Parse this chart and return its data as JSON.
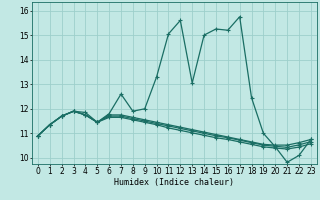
{
  "xlabel": "Humidex (Indice chaleur)",
  "ylabel": "",
  "bg_color": "#c2e8e4",
  "grid_color": "#9ecfcb",
  "line_color": "#1a6e64",
  "xlim": [
    -0.5,
    23.5
  ],
  "ylim": [
    9.75,
    16.35
  ],
  "xticks": [
    0,
    1,
    2,
    3,
    4,
    5,
    6,
    7,
    8,
    9,
    10,
    11,
    12,
    13,
    14,
    15,
    16,
    17,
    18,
    19,
    20,
    21,
    22,
    23
  ],
  "yticks": [
    10,
    11,
    12,
    13,
    14,
    15,
    16
  ],
  "series": [
    [
      10.9,
      11.35,
      11.7,
      11.9,
      11.85,
      11.45,
      11.8,
      12.6,
      11.9,
      12.0,
      13.3,
      15.05,
      15.6,
      13.05,
      15.0,
      15.25,
      15.2,
      15.75,
      12.45,
      11.0,
      10.45,
      9.82,
      10.1,
      10.75
    ],
    [
      10.9,
      11.35,
      11.7,
      11.9,
      11.75,
      11.45,
      11.75,
      11.75,
      11.65,
      11.55,
      11.45,
      11.35,
      11.25,
      11.15,
      11.05,
      10.95,
      10.85,
      10.75,
      10.65,
      10.55,
      10.52,
      10.52,
      10.62,
      10.75
    ],
    [
      10.9,
      11.35,
      11.7,
      11.9,
      11.75,
      11.45,
      11.7,
      11.7,
      11.6,
      11.5,
      11.4,
      11.3,
      11.2,
      11.1,
      11.0,
      10.9,
      10.82,
      10.72,
      10.62,
      10.52,
      10.47,
      10.43,
      10.53,
      10.66
    ],
    [
      10.9,
      11.35,
      11.7,
      11.9,
      11.75,
      11.45,
      11.65,
      11.65,
      11.55,
      11.45,
      11.35,
      11.22,
      11.12,
      11.02,
      10.92,
      10.82,
      10.75,
      10.65,
      10.55,
      10.45,
      10.4,
      10.36,
      10.44,
      10.58
    ]
  ],
  "marker": "+",
  "markersize": 3.5,
  "linewidth": 0.9,
  "axis_fontsize": 6,
  "tick_fontsize": 5.5
}
